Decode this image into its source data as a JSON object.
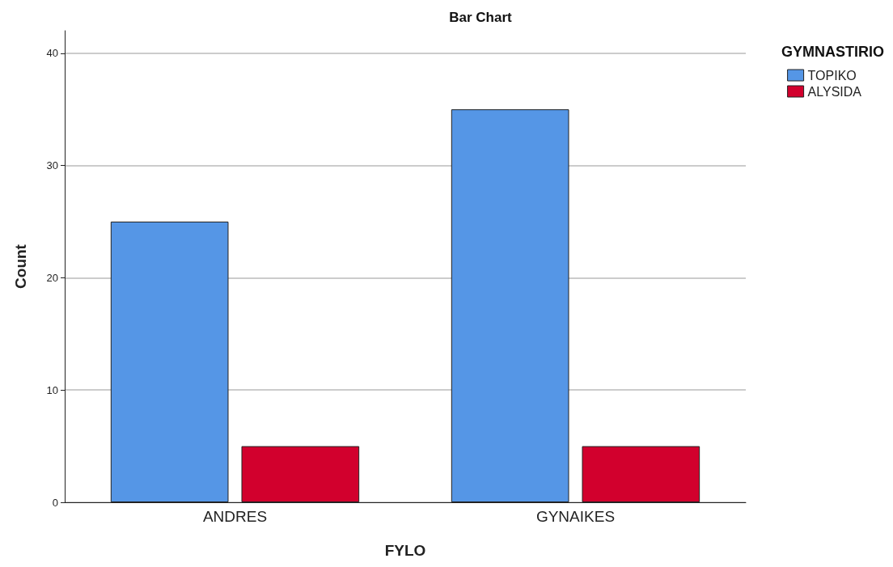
{
  "chart_data": {
    "type": "bar",
    "title": "Bar Chart",
    "xlabel": "FYLO",
    "ylabel": "Count",
    "legend_title": "GYMNASTIRIO",
    "categories": [
      "ANDRES",
      "GYNAIKES"
    ],
    "series": [
      {
        "name": "TOPIKO",
        "color": "#5596e6",
        "values": [
          25,
          35
        ]
      },
      {
        "name": "ALYSIDA",
        "color": "#d2002d",
        "values": [
          5,
          5
        ]
      }
    ],
    "ylim": [
      0,
      42
    ],
    "yticks": [
      0,
      10,
      20,
      30,
      40
    ],
    "grid": "y",
    "legend": "top right"
  }
}
